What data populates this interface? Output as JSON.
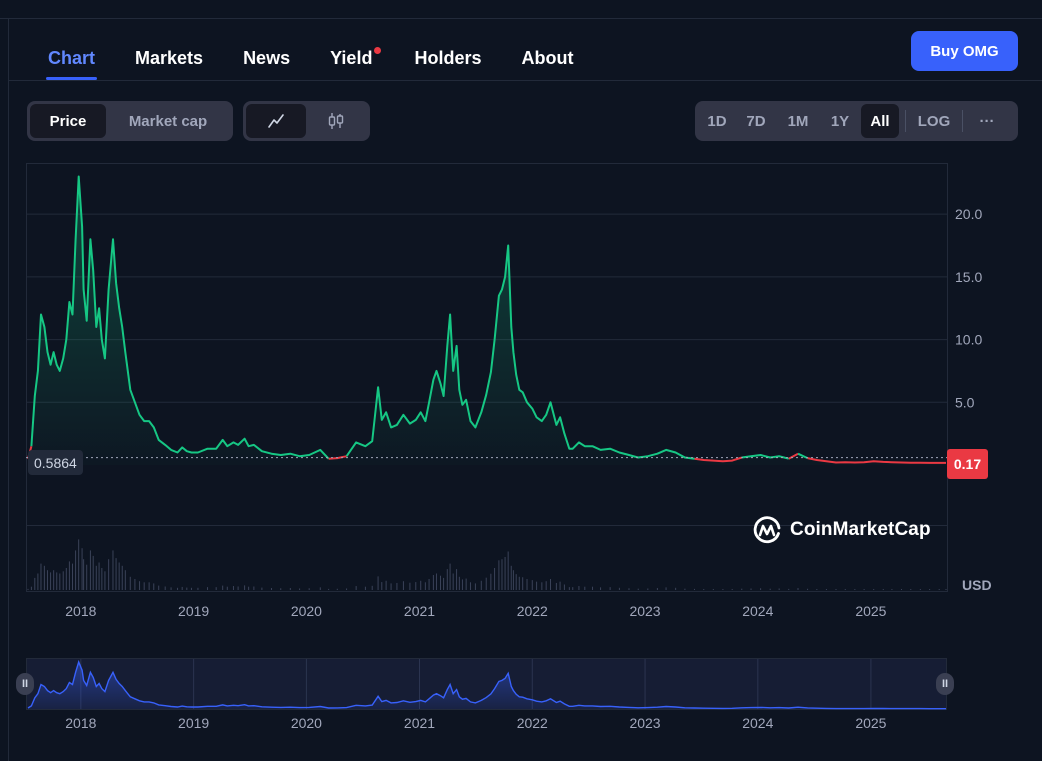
{
  "tabs": [
    {
      "label": "Chart",
      "active": true
    },
    {
      "label": "Markets"
    },
    {
      "label": "News"
    },
    {
      "label": "Yield",
      "badge": "red-dot"
    },
    {
      "label": "Holders"
    },
    {
      "label": "About"
    }
  ],
  "buy_button": "Buy OMG",
  "metric_toggle": [
    "Price",
    "Market cap"
  ],
  "metric_selected": "Price",
  "chart_style": {
    "options": [
      "line-chart-icon",
      "candlestick-icon"
    ],
    "selected": "line-chart-icon"
  },
  "ranges": [
    "1D",
    "7D",
    "1M",
    "1Y",
    "All"
  ],
  "range_selected": "All",
  "log_label": "LOG",
  "more_label": "···",
  "watermark": "CoinMarketCap",
  "current_price": "0.17",
  "baseline_price": "0.5864",
  "currency": "USD",
  "colors": {
    "up": "#16c784",
    "down": "#ea3943",
    "accent": "#3861fb",
    "navigator": "#3861fb",
    "background": "#0d1421"
  },
  "chart_data": {
    "type": "line",
    "title": "",
    "series": [
      {
        "x": [
          "2017-07-14",
          "2017-07-25",
          "2017-08-05",
          "2017-08-15",
          "2017-08-25",
          "2017-09-05",
          "2017-09-15",
          "2017-09-25",
          "2017-10-05",
          "2017-10-15",
          "2017-10-25",
          "2017-11-05",
          "2017-11-15",
          "2017-11-25",
          "2017-12-05",
          "2017-12-15",
          "2017-12-25",
          "2018-01-05",
          "2018-01-10",
          "2018-01-20",
          "2018-02-01",
          "2018-02-10",
          "2018-02-20",
          "2018-03-01",
          "2018-03-10",
          "2018-03-20",
          "2018-04-01",
          "2018-04-15",
          "2018-04-25",
          "2018-05-05",
          "2018-05-15",
          "2018-05-25",
          "2018-06-10",
          "2018-06-25",
          "2018-07-10",
          "2018-07-25",
          "2018-08-10",
          "2018-08-25",
          "2018-09-10",
          "2018-10-01",
          "2018-10-20",
          "2018-11-10",
          "2018-11-25",
          "2018-12-10",
          "2018-12-25",
          "2019-01-15",
          "2019-02-15",
          "2019-03-15",
          "2019-04-05",
          "2019-04-20",
          "2019-05-10",
          "2019-05-25",
          "2019-06-15",
          "2019-06-28",
          "2019-07-15",
          "2019-08-10",
          "2019-09-10",
          "2019-10-10",
          "2019-11-10",
          "2019-12-10",
          "2020-01-10",
          "2020-02-15",
          "2020-03-13",
          "2020-04-10",
          "2020-05-10",
          "2020-06-10",
          "2020-07-10",
          "2020-08-01",
          "2020-08-20",
          "2020-09-01",
          "2020-09-15",
          "2020-10-01",
          "2020-10-20",
          "2020-11-10",
          "2020-12-01",
          "2020-12-20",
          "2021-01-05",
          "2021-01-20",
          "2021-02-01",
          "2021-02-15",
          "2021-02-25",
          "2021-03-10",
          "2021-03-20",
          "2021-04-01",
          "2021-04-10",
          "2021-04-20",
          "2021-05-01",
          "2021-05-10",
          "2021-05-20",
          "2021-06-01",
          "2021-06-15",
          "2021-07-01",
          "2021-07-20",
          "2021-08-05",
          "2021-08-20",
          "2021-09-01",
          "2021-09-15",
          "2021-09-25",
          "2021-10-05",
          "2021-10-15",
          "2021-10-25",
          "2021-11-01",
          "2021-11-10",
          "2021-11-20",
          "2021-12-01",
          "2021-12-15",
          "2022-01-01",
          "2022-01-15",
          "2022-02-01",
          "2022-02-15",
          "2022-03-01",
          "2022-03-20",
          "2022-04-01",
          "2022-04-15",
          "2022-05-01",
          "2022-05-12",
          "2022-06-01",
          "2022-06-20",
          "2022-07-15",
          "2022-08-10",
          "2022-09-10",
          "2022-10-10",
          "2022-11-10",
          "2022-12-10",
          "2023-01-10",
          "2023-02-10",
          "2023-03-10",
          "2023-04-10",
          "2023-05-10",
          "2023-06-10",
          "2023-07-10",
          "2023-08-10",
          "2023-09-10",
          "2023-10-10",
          "2023-11-10",
          "2023-12-10",
          "2024-01-10",
          "2024-02-10",
          "2024-03-10",
          "2024-04-10",
          "2024-05-10",
          "2024-06-10",
          "2024-07-10",
          "2024-08-10",
          "2024-09-10",
          "2024-10-10",
          "2024-11-10",
          "2024-12-10",
          "2025-01-10",
          "2025-02-10",
          "2025-03-10",
          "2025-04-10",
          "2025-05-10",
          "2025-06-10",
          "2025-07-10",
          "2025-08-10",
          "2025-09-01"
        ],
        "y": [
          0.5,
          1.5,
          5.5,
          7.5,
          12,
          11,
          9,
          8,
          9,
          8,
          7.5,
          8.5,
          10,
          13,
          12,
          18,
          23,
          19,
          14,
          11.5,
          18,
          15.5,
          11,
          12.5,
          10,
          8.5,
          14,
          18,
          14.5,
          12.5,
          11,
          9,
          6,
          5,
          4,
          3.5,
          3.5,
          3,
          2,
          1.6,
          1.2,
          1.0,
          1.4,
          1.1,
          1.0,
          1.0,
          1.3,
          1.3,
          2.0,
          1.5,
          1.8,
          1.6,
          2.1,
          1.5,
          1.6,
          1.1,
          0.9,
          0.8,
          0.9,
          0.7,
          0.8,
          1.2,
          0.5,
          0.55,
          0.7,
          1.8,
          1.5,
          1.9,
          6.2,
          3.6,
          4.2,
          3.0,
          3.2,
          4.0,
          3.3,
          3.6,
          4.2,
          3.5,
          5.0,
          6.8,
          7.5,
          6.5,
          5.5,
          9.5,
          12,
          7.5,
          9.5,
          6.0,
          4.8,
          5.2,
          3.5,
          3.0,
          4.2,
          5.6,
          7.4,
          10,
          13.5,
          14,
          15,
          17.5,
          11,
          9,
          7.2,
          6,
          5.8,
          5,
          4.5,
          3.8,
          3.5,
          4.0,
          5.0,
          3.2,
          3.8,
          2.5,
          1.3,
          1.3,
          1.8,
          1.5,
          1.5,
          1.2,
          1.3,
          1.0,
          0.8,
          0.6,
          0.7,
          0.9,
          1.2,
          1.0,
          0.6,
          0.5,
          0.4,
          0.35,
          0.3,
          0.35,
          0.6,
          0.7,
          0.8,
          0.6,
          0.7,
          0.5,
          0.9,
          0.55,
          0.4,
          0.3,
          0.2,
          0.22,
          0.2,
          0.22,
          0.3,
          0.25,
          0.22,
          0.2,
          0.18,
          0.18,
          0.17,
          0.17,
          0.17
        ]
      }
    ],
    "ylim": [
      0,
      24
    ],
    "yticks": [
      "20.0",
      "15.0",
      "10.0",
      "5.0"
    ],
    "xticks": [
      "2018",
      "2019",
      "2020",
      "2021",
      "2022",
      "2023",
      "2024",
      "2025"
    ],
    "grid": true,
    "legend": "none"
  }
}
